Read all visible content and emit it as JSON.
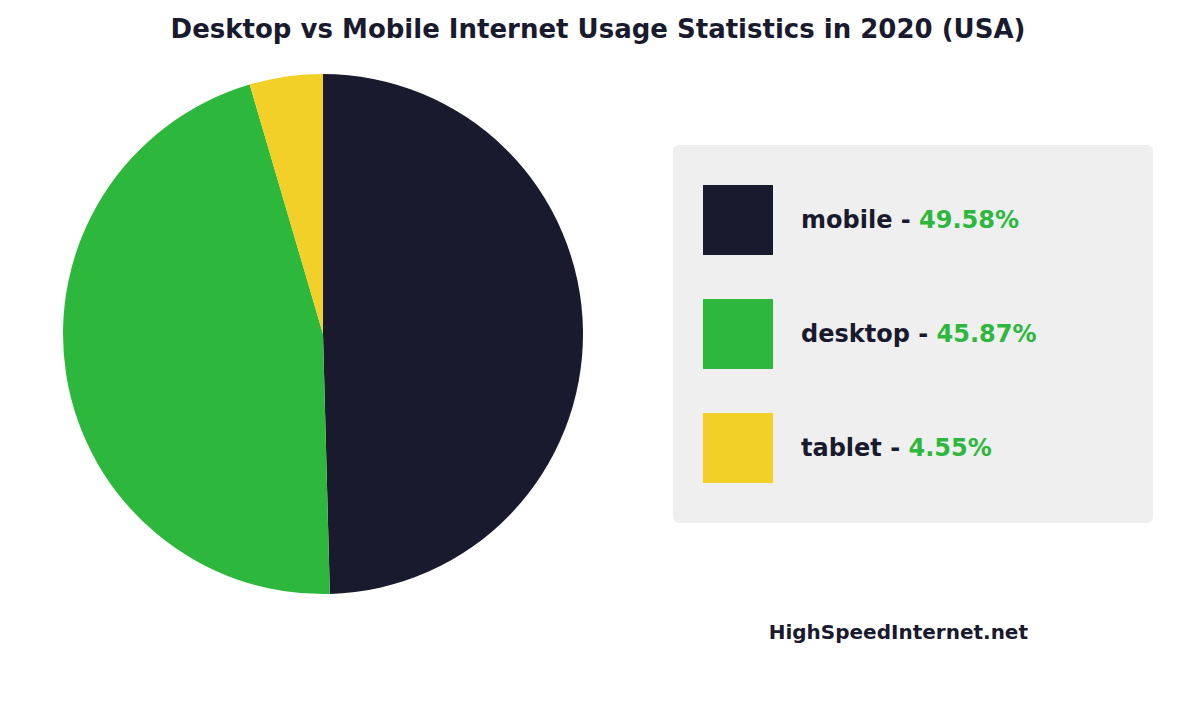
{
  "chart_data": {
    "type": "pie",
    "title": "Desktop vs Mobile Internet Usage Statistics in 2020 (USA)",
    "categories": [
      "mobile - ",
      "desktop - ",
      "tablet - "
    ],
    "values": [
      49.58,
      45.87,
      4.55
    ],
    "value_labels": [
      "49.58%",
      "45.87%",
      "4.55%"
    ],
    "colors": [
      "#1a1a2e",
      "#2db83d",
      "#f2d027"
    ],
    "legend": "right",
    "annotations": [
      "HighSpeedInternet.net"
    ]
  }
}
